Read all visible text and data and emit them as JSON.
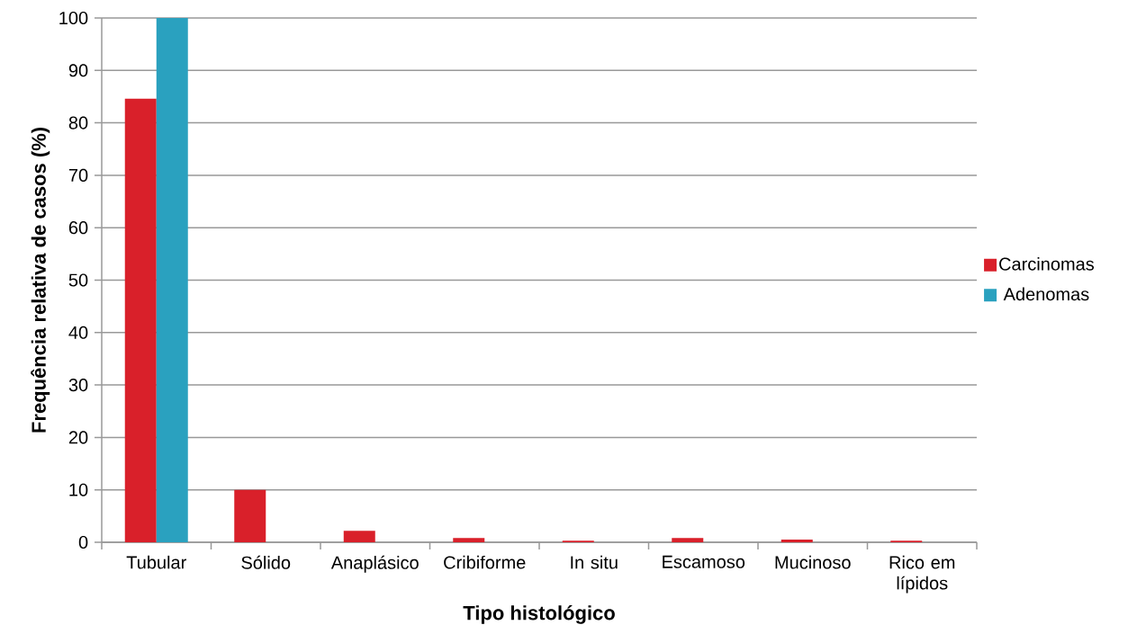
{
  "chart_data": {
    "type": "bar",
    "xlabel": "Tipo histológico",
    "ylabel": "Frequência relativa de casos (%)",
    "categories": [
      "Tubular",
      "Sólido",
      "Anaplásico",
      "Cribiforme",
      "In situ",
      "Escamoso",
      "Mucinoso",
      "Rico em lípidos"
    ],
    "series": [
      {
        "name": "Carcinomas",
        "color": "#d9202a",
        "values": [
          84.6,
          10,
          2.2,
          0.8,
          0.3,
          0.8,
          0.5,
          0.3
        ]
      },
      {
        "name": "Adenomas",
        "color": "#2aa1bf",
        "values": [
          100,
          null,
          null,
          null,
          null,
          null,
          null,
          null
        ]
      }
    ],
    "ylim": [
      0,
      100
    ],
    "yticks": [
      0,
      10,
      20,
      30,
      40,
      50,
      60,
      70,
      80,
      90,
      100
    ],
    "grid": "y",
    "legend": "right"
  }
}
